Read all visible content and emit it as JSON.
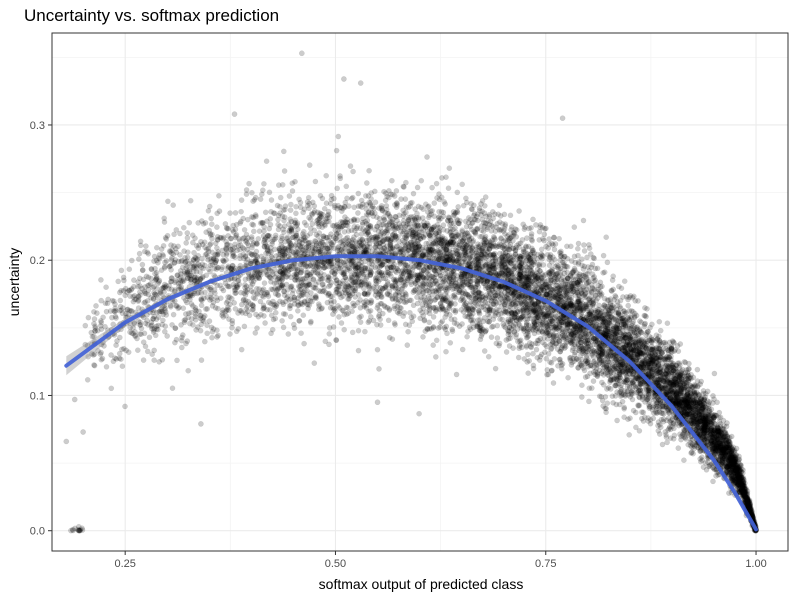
{
  "chart_data": {
    "type": "scatter",
    "title": "Uncertainty vs. softmax prediction",
    "xlabel": "softmax output of predicted class",
    "ylabel": "uncertainty",
    "xlim": [
      0.163,
      1.038
    ],
    "ylim": [
      -0.015,
      0.368
    ],
    "x_ticks": [
      0.25,
      0.5,
      0.75,
      1.0
    ],
    "x_tick_labels": [
      "0.25",
      "0.50",
      "0.75",
      "1.00"
    ],
    "y_ticks": [
      0.0,
      0.1,
      0.2,
      0.3
    ],
    "y_tick_labels": [
      "0.0",
      "0.1",
      "0.2",
      "0.3"
    ],
    "grid": true,
    "legend": "none",
    "colors": {
      "points": "#000000",
      "smooth_line": "#3f5fd6",
      "ribbon": "#999999",
      "grid": "#ebebeb",
      "panel_border": "#333333"
    },
    "series": [
      {
        "kind": "points",
        "point_count": 9000,
        "opacity": 0.2,
        "description_x_range": [
          0.18,
          1.0
        ],
        "notable_points": [
          {
            "x": 0.18,
            "y": 0.066
          },
          {
            "x": 0.19,
            "y": 0.097
          },
          {
            "x": 0.2,
            "y": 0.073
          },
          {
            "x": 0.34,
            "y": 0.079
          },
          {
            "x": 0.46,
            "y": 0.353
          },
          {
            "x": 0.51,
            "y": 0.334
          },
          {
            "x": 0.53,
            "y": 0.331
          },
          {
            "x": 0.38,
            "y": 0.308
          },
          {
            "x": 0.77,
            "y": 0.305
          },
          {
            "x": 0.55,
            "y": 0.095
          },
          {
            "x": 1.0,
            "y": 0.0
          }
        ],
        "band_profile": [
          {
            "x": 0.2,
            "center": 0.14,
            "spread": 0.03
          },
          {
            "x": 0.3,
            "center": 0.178,
            "spread": 0.04
          },
          {
            "x": 0.4,
            "center": 0.196,
            "spread": 0.045
          },
          {
            "x": 0.5,
            "center": 0.203,
            "spread": 0.045
          },
          {
            "x": 0.6,
            "center": 0.2,
            "spread": 0.043
          },
          {
            "x": 0.7,
            "center": 0.185,
            "spread": 0.04
          },
          {
            "x": 0.8,
            "center": 0.155,
            "spread": 0.037
          },
          {
            "x": 0.9,
            "center": 0.105,
            "spread": 0.028
          },
          {
            "x": 0.95,
            "center": 0.07,
            "spread": 0.02
          },
          {
            "x": 0.98,
            "center": 0.04,
            "spread": 0.012
          },
          {
            "x": 1.0,
            "center": 0.0,
            "spread": 0.002
          }
        ]
      },
      {
        "kind": "smooth",
        "x": [
          0.18,
          0.25,
          0.3,
          0.35,
          0.4,
          0.45,
          0.5,
          0.55,
          0.6,
          0.65,
          0.7,
          0.75,
          0.8,
          0.85,
          0.9,
          0.95,
          0.975,
          1.0
        ],
        "y": [
          0.122,
          0.154,
          0.171,
          0.184,
          0.194,
          0.2,
          0.203,
          0.203,
          0.2,
          0.194,
          0.184,
          0.17,
          0.151,
          0.125,
          0.092,
          0.052,
          0.028,
          0.001
        ],
        "ribbon_halfwidth": [
          0.007,
          0.003,
          0.002,
          0.0015,
          0.0012,
          0.001,
          0.001,
          0.001,
          0.001,
          0.001,
          0.001,
          0.001,
          0.0012,
          0.0012,
          0.0012,
          0.0012,
          0.0012,
          0.0015
        ]
      }
    ]
  }
}
